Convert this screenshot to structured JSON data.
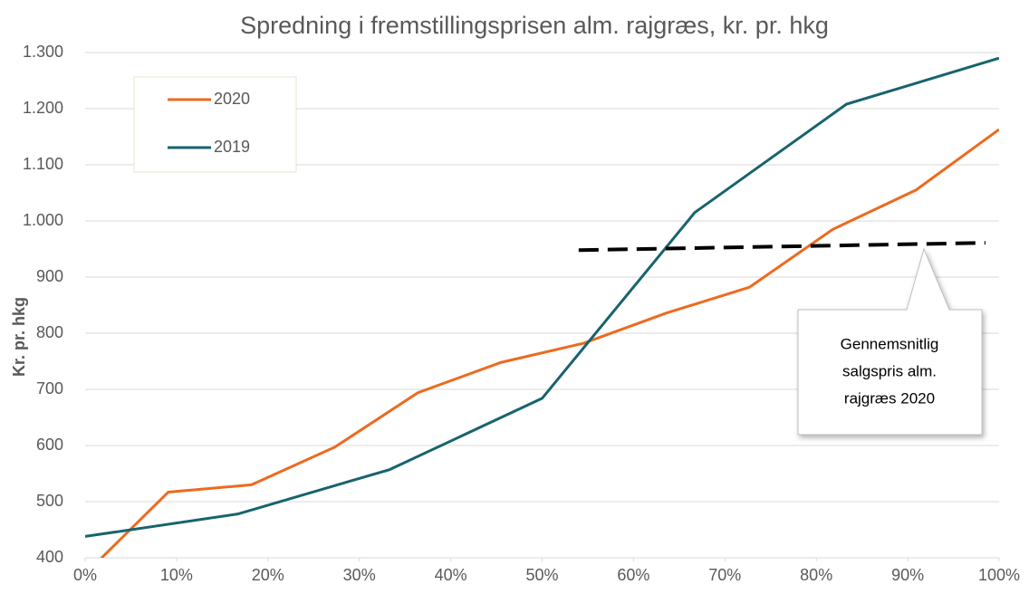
{
  "chart_data": {
    "type": "line",
    "title": "Spredning i fremstillingsprisen alm. rajgræs, kr. pr. hkg",
    "y_label": "Kr. pr. hkg",
    "xlim": [
      0,
      100
    ],
    "xticks": [
      {
        "value": 0,
        "label": "0%"
      },
      {
        "value": 10,
        "label": "10%"
      },
      {
        "value": 20,
        "label": "20%"
      },
      {
        "value": 30,
        "label": "30%"
      },
      {
        "value": 40,
        "label": "40%"
      },
      {
        "value": 50,
        "label": "50%"
      },
      {
        "value": 60,
        "label": "60%"
      },
      {
        "value": 70,
        "label": "70%"
      },
      {
        "value": 80,
        "label": "80%"
      },
      {
        "value": 90,
        "label": "90%"
      },
      {
        "value": 100,
        "label": "100%"
      }
    ],
    "ylim": [
      400,
      1300
    ],
    "yticks": [
      400,
      500,
      600,
      700,
      800,
      900,
      {
        "value": 1000,
        "label": "1.000"
      },
      {
        "value": 1100,
        "label": "1.100"
      },
      {
        "value": 1200,
        "label": "1.200"
      },
      {
        "value": 1300,
        "label": "1.300"
      }
    ],
    "grid": true,
    "legend": "upper left",
    "series": [
      {
        "name": "2020",
        "color": "#ed6a1f",
        "x": [
          0,
          9.1,
          18.2,
          27.3,
          36.4,
          45.5,
          54.5,
          63.6,
          72.7,
          81.8,
          90.9,
          100
        ],
        "values": [
          371,
          517,
          530,
          597,
          694,
          748,
          782,
          836,
          882,
          985,
          1055,
          1163
        ]
      },
      {
        "name": "2019",
        "color": "#17646e",
        "x": [
          0,
          16.7,
          33.3,
          50,
          66.7,
          83.3,
          100
        ],
        "values": [
          438,
          478,
          557,
          684,
          1015,
          1208,
          1290
        ]
      }
    ],
    "reference_line": {
      "x": [
        54,
        98.5
      ],
      "values": [
        948,
        961
      ],
      "color": "#000000"
    },
    "annotation": [
      "Gennemsnitlig",
      "salgspris alm.",
      "rajgræs 2020"
    ]
  }
}
